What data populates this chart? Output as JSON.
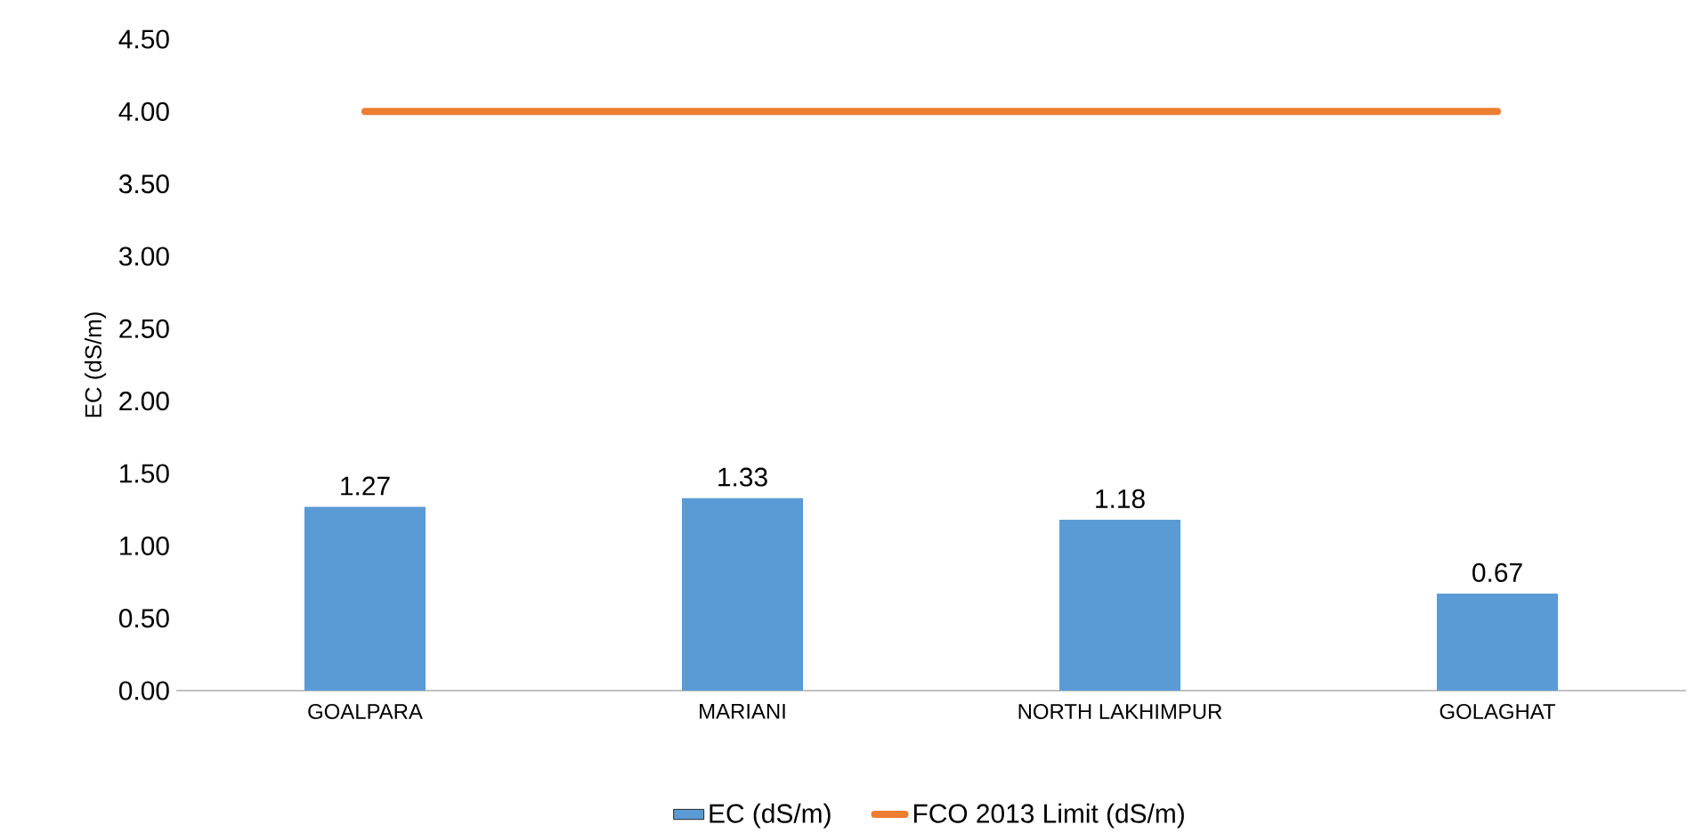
{
  "chart_data": {
    "type": "bar",
    "ylabel": "EC (dS/m)",
    "categories": [
      "GOALPARA",
      "MARIANI",
      "NORTH LAKHIMPUR",
      "GOLAGHAT"
    ],
    "series": [
      {
        "name": "EC (dS/m)",
        "color": "#5b9bd5",
        "values": [
          1.27,
          1.33,
          1.18,
          0.67
        ],
        "value_labels": [
          "1.27",
          "1.33",
          "1.18",
          "0.67"
        ]
      },
      {
        "name": "FCO 2013 Limit (dS/m)",
        "type": "line",
        "color": "#ed7d31",
        "values": [
          4,
          4,
          4,
          4
        ]
      }
    ],
    "ylim": [
      0,
      4.5
    ],
    "yticks": [
      {
        "value": 0,
        "label": "0.00"
      },
      {
        "value": 0.5,
        "label": "0.50"
      },
      {
        "value": 1,
        "label": "1.00"
      },
      {
        "value": 1.5,
        "label": "1.50"
      },
      {
        "value": 2,
        "label": "2.00"
      },
      {
        "value": 2.5,
        "label": "2.50"
      },
      {
        "value": 3,
        "label": "3.00"
      },
      {
        "value": 3.5,
        "label": "3.50"
      },
      {
        "value": 4,
        "label": "4.00"
      },
      {
        "value": 4.5,
        "label": "4.50"
      }
    ],
    "legend": "bottom"
  }
}
